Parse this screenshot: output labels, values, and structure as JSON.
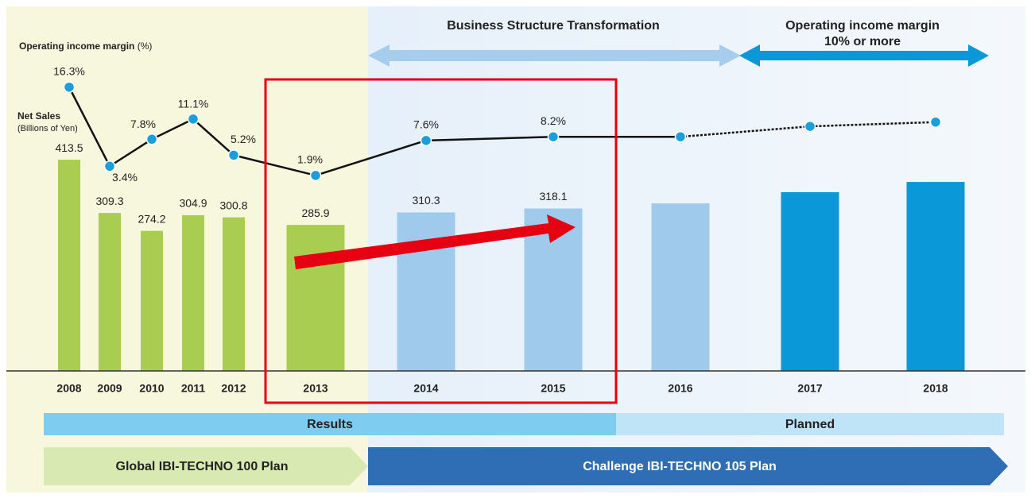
{
  "chart_data": {
    "type": "bar_line",
    "categories": [
      "2008",
      "2009",
      "2010",
      "2011",
      "2012",
      "2013",
      "2014",
      "2015",
      "2016",
      "2017",
      "2018"
    ],
    "series": [
      {
        "name": "Net Sales",
        "type": "bar",
        "unit": "(Billions of Yen)",
        "values": [
          413.5,
          309.3,
          274.2,
          304.9,
          300.8,
          285.9,
          310.3,
          318.1,
          328,
          350,
          370
        ],
        "value_labels": [
          "413.5",
          "309.3",
          "274.2",
          "304.9",
          "300.8",
          "285.9",
          "310.3",
          "318.1",
          null,
          null,
          null
        ],
        "colors": [
          "#a9cd50",
          "#a9cd50",
          "#a9cd50",
          "#a9cd50",
          "#a9cd50",
          "#a9cd50",
          "#9fcaeb",
          "#9fcaeb",
          "#9fcaeb",
          "#0a98d8",
          "#0a98d8"
        ]
      },
      {
        "name": "Operating income margin",
        "type": "line",
        "unit": "(%)",
        "axis": "y2",
        "color": "#1a9fdb",
        "values": [
          16.3,
          3.4,
          7.8,
          11.1,
          5.2,
          1.9,
          7.6,
          8.2,
          8.2,
          9.9,
          10.6
        ],
        "value_labels": [
          "16.3%",
          "3.4%",
          "7.8%",
          "11.1%",
          "5.2%",
          "1.9%",
          "7.6%",
          "8.2%",
          null,
          null,
          null
        ]
      }
    ],
    "ylim": [
      0,
      720
    ],
    "y2lim": [
      -30,
      30
    ],
    "annotations": [
      "Business Structure Transformation",
      "Operating income margin",
      "10% or more"
    ],
    "periods": [
      "Results",
      "Planned"
    ],
    "plans": [
      "Global IBI-TECHNO 100 Plan",
      "Challenge IBI-TECHNO 105 Plan"
    ]
  }
}
